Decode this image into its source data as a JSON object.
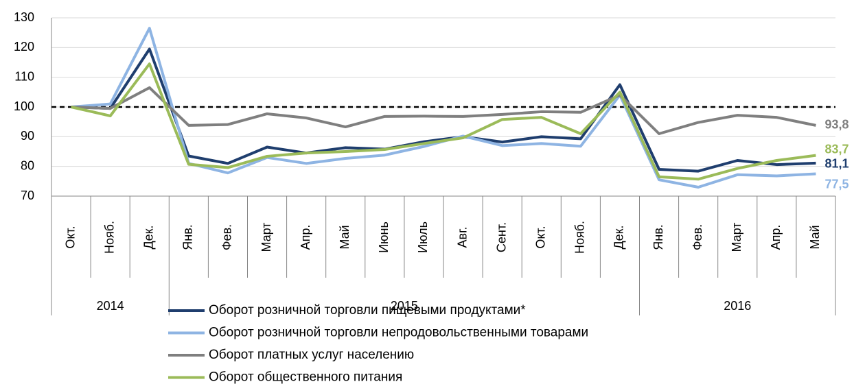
{
  "chart_data": {
    "type": "line",
    "groups": [
      {
        "name": "2014",
        "categories": [
          "Окт.",
          "Нояб.",
          "Дек."
        ]
      },
      {
        "name": "2015",
        "categories": [
          "Янв.",
          "Фев.",
          "Март",
          "Апр.",
          "Май",
          "Июнь",
          "Июль",
          "Авг.",
          "Сент.",
          "Окт.",
          "Нояб.",
          "Дек."
        ]
      },
      {
        "name": "2016",
        "categories": [
          "Янв.",
          "Фев.",
          "Март",
          "Апр.",
          "Май"
        ]
      }
    ],
    "ylim": [
      70,
      130
    ],
    "yticks": [
      70,
      80,
      90,
      100,
      110,
      120,
      130
    ],
    "reference_line": 100,
    "series": [
      {
        "name": "Оборот розничной торговли пищевыми продуктами*",
        "color": "#1f3e6e",
        "values": [
          100,
          99.5,
          119.5,
          83.5,
          81,
          86.5,
          84.5,
          86.3,
          85.8,
          88.3,
          90,
          88.2,
          90,
          89.3,
          107.5,
          79,
          78.4,
          82,
          80.6,
          81.1
        ],
        "value_labels": [
          null,
          null,
          null,
          null,
          null,
          null,
          null,
          null,
          null,
          null,
          null,
          null,
          null,
          null,
          null,
          null,
          null,
          null,
          null,
          "81,1"
        ]
      },
      {
        "name": "Оборот розничной торговли непродовольственными товарами",
        "color": "#8eb4e3",
        "values": [
          100,
          101,
          126.5,
          81,
          77.8,
          83,
          81,
          82.7,
          83.8,
          86.7,
          90.2,
          87,
          87.7,
          86.8,
          104,
          75.5,
          73,
          77.2,
          76.8,
          77.5
        ],
        "value_labels": [
          null,
          null,
          null,
          null,
          null,
          null,
          null,
          null,
          null,
          null,
          null,
          null,
          null,
          null,
          null,
          null,
          null,
          null,
          null,
          "77,5"
        ]
      },
      {
        "name": "Оборот платных услуг населению",
        "color": "#7f7f7f",
        "values": [
          100,
          99.5,
          106.5,
          93.8,
          94.1,
          97.7,
          96.3,
          93.3,
          96.8,
          96.9,
          96.8,
          97.5,
          98.4,
          98.2,
          104,
          91,
          94.8,
          97.2,
          96.5,
          93.8
        ],
        "value_labels": [
          null,
          null,
          null,
          null,
          null,
          null,
          null,
          null,
          null,
          null,
          null,
          null,
          null,
          null,
          null,
          null,
          null,
          null,
          null,
          "93,8"
        ]
      },
      {
        "name": "Оборот общественного питания",
        "color": "#9bbb59",
        "values": [
          100,
          97,
          114.5,
          80.7,
          79.6,
          83.4,
          84.5,
          85,
          85.7,
          87.7,
          89.6,
          95.8,
          96.5,
          91,
          105,
          76.5,
          75.7,
          79.3,
          82,
          83.7
        ],
        "value_labels": [
          null,
          null,
          null,
          null,
          null,
          null,
          null,
          null,
          null,
          null,
          null,
          null,
          null,
          null,
          null,
          null,
          null,
          null,
          null,
          "83,7"
        ]
      }
    ],
    "grid": true
  }
}
